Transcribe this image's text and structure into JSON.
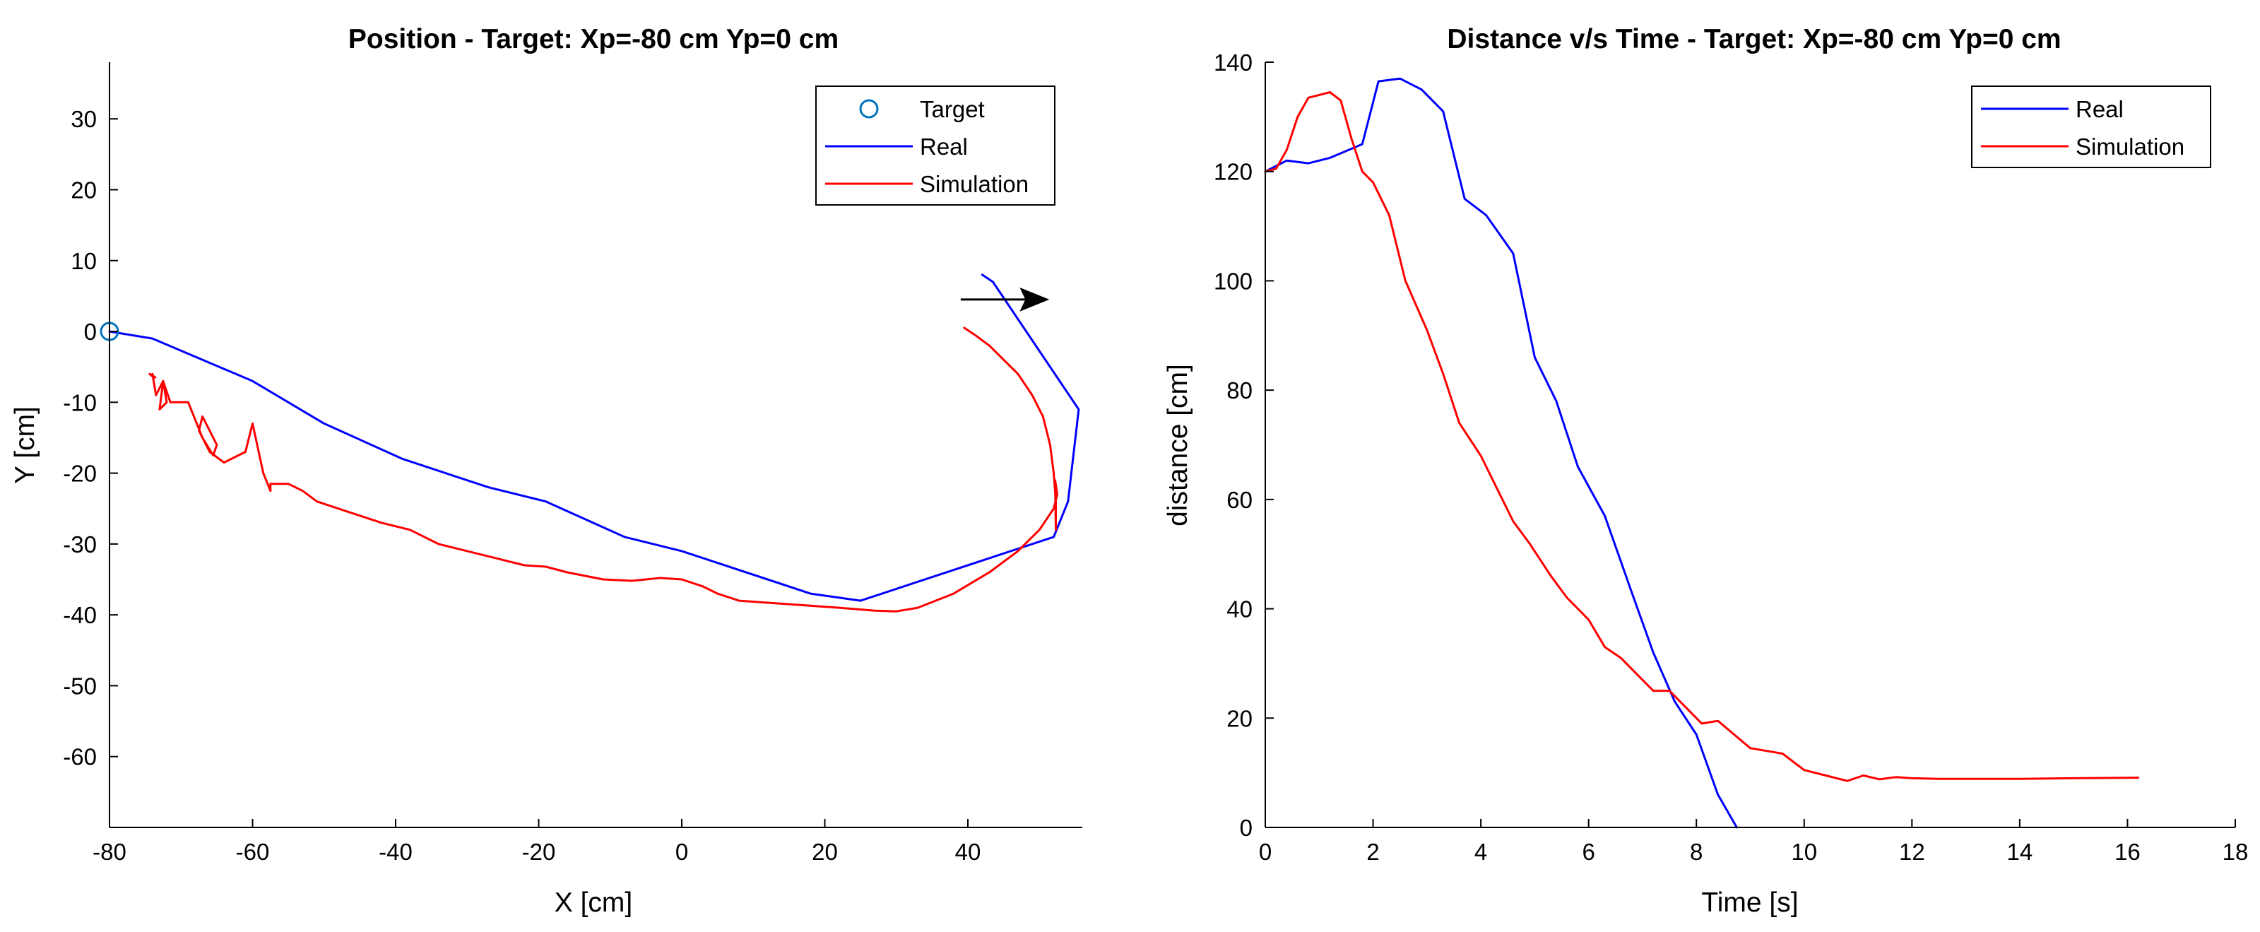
{
  "chart_data": [
    {
      "type": "line",
      "title": "Position - Target: Xp=-80 cm Yp=0 cm",
      "xlabel": "X [cm]",
      "ylabel": "Y [cm]",
      "xlim": [
        -80,
        56
      ],
      "ylim": [
        -70,
        38
      ],
      "xticks": [
        -80,
        -60,
        -40,
        -20,
        0,
        20,
        40
      ],
      "yticks": [
        30,
        20,
        10,
        0,
        -10,
        -20,
        -30,
        -40,
        -50,
        -60
      ],
      "grid": false,
      "legend_position": "top-right",
      "legend": [
        "Target",
        "Real",
        "Simulation"
      ],
      "colors": {
        "target": "#0072bd",
        "real": "#0000ff",
        "simulation": "#ff0000",
        "arrow": "#000000"
      },
      "target_point": {
        "name": "Target",
        "x": -80,
        "y": 0
      },
      "arrow": {
        "x": 39,
        "y": 4.5,
        "dx": 12,
        "dy": 0
      },
      "series": [
        {
          "name": "Real",
          "x": [
            42,
            43.5,
            55.5,
            54,
            52,
            25,
            18,
            0,
            -8,
            -19,
            -27,
            -39,
            -50,
            -60,
            -74,
            -80
          ],
          "y": [
            8,
            7,
            -11,
            -24,
            -29,
            -38,
            -37,
            -31,
            -29,
            -24,
            -22,
            -18,
            -13,
            -7,
            -1,
            0
          ]
        },
        {
          "name": "Simulation",
          "x": [
            39.5,
            41,
            43,
            45,
            47,
            49,
            50.5,
            51.5,
            52,
            52.3,
            52.3,
            52.2,
            52.5,
            52,
            50,
            47,
            43,
            38,
            33,
            30,
            27,
            22,
            15,
            8,
            5,
            3,
            0,
            -3,
            -7,
            -11,
            -16,
            -19,
            -22,
            -26,
            -30,
            -34,
            -38,
            -42,
            -45,
            -46.5,
            -48,
            -51,
            -53,
            -55,
            -57.5,
            -57.5,
            -58.5,
            -60,
            -61,
            -64,
            -66,
            -67.5,
            -67,
            -65,
            -65.5,
            -67,
            -69,
            -71.5,
            -72.5,
            -73,
            -72,
            -72.5,
            -73.5,
            -74,
            -73.8,
            -74.4,
            -73.6,
            -74.2
          ],
          "y": [
            0.5,
            -0.5,
            -2,
            -4,
            -6,
            -9,
            -12,
            -16,
            -20,
            -24,
            -28,
            -21,
            -23,
            -25,
            -28,
            -31,
            -34,
            -37,
            -39,
            -39.5,
            -39.4,
            -39,
            -38.5,
            -38,
            -37,
            -36,
            -35,
            -34.8,
            -35.2,
            -35,
            -34,
            -33.2,
            -33,
            -32,
            -31,
            -30,
            -28,
            -27,
            -26,
            -25.5,
            -25,
            -24,
            -22.5,
            -21.5,
            -21.5,
            -22.5,
            -20,
            -13,
            -17,
            -18.5,
            -17,
            -14,
            -12,
            -16,
            -17.5,
            -15,
            -10,
            -10,
            -7,
            -11,
            -10,
            -7,
            -9,
            -6,
            -6.5,
            -6,
            -6.5,
            -6.2
          ]
        }
      ]
    },
    {
      "type": "line",
      "title": "Distance v/s Time - Target: Xp=-80 cm Yp=0 cm",
      "xlabel": "Time [s]",
      "ylabel": "distance [cm]",
      "xlim": [
        0,
        18
      ],
      "ylim": [
        0,
        140
      ],
      "xticks": [
        0,
        2,
        4,
        6,
        8,
        10,
        12,
        14,
        16,
        18
      ],
      "yticks": [
        0,
        20,
        40,
        60,
        80,
        100,
        120,
        140
      ],
      "grid": false,
      "legend_position": "top-right",
      "legend": [
        "Real",
        "Simulation"
      ],
      "colors": {
        "real": "#0000ff",
        "simulation": "#ff0000"
      },
      "series": [
        {
          "name": "Real",
          "x": [
            0,
            0.4,
            0.8,
            1.2,
            1.8,
            2.1,
            2.5,
            2.9,
            3.3,
            3.7,
            4.1,
            4.6,
            5.0,
            5.4,
            5.8,
            6.3,
            6.8,
            7.2,
            7.6,
            8.0,
            8.4,
            8.75
          ],
          "y": [
            120,
            122,
            121.5,
            122.5,
            125,
            136.5,
            137,
            135,
            131,
            115,
            112,
            105,
            86,
            78,
            66,
            57,
            43,
            32,
            23,
            17,
            6,
            0
          ]
        },
        {
          "name": "Simulation",
          "x": [
            0,
            0.2,
            0.4,
            0.6,
            0.8,
            1.0,
            1.2,
            1.4,
            1.6,
            1.8,
            2.0,
            2.3,
            2.6,
            3.0,
            3.3,
            3.6,
            4.0,
            4.3,
            4.6,
            4.9,
            5.3,
            5.6,
            6.0,
            6.3,
            6.6,
            6.9,
            7.2,
            7.5,
            7.8,
            8.1,
            8.4,
            8.7,
            9.0,
            9.3,
            9.6,
            10.0,
            10.4,
            10.8,
            11.1,
            11.4,
            11.7,
            12.0,
            12.5,
            13.0,
            14.0,
            15.0,
            16.2
          ],
          "y": [
            120,
            120.5,
            124,
            130,
            133.5,
            134,
            134.5,
            133,
            126,
            120,
            118,
            112,
            100,
            91,
            83,
            74,
            68,
            62,
            56,
            52,
            46,
            42,
            38,
            33,
            31,
            28,
            25,
            25,
            22,
            19,
            19.5,
            17,
            14.5,
            14,
            13.5,
            10.5,
            9.5,
            8.5,
            9.5,
            8.8,
            9.2,
            9,
            8.9,
            8.9,
            8.9,
            9,
            9.1
          ]
        }
      ]
    }
  ]
}
